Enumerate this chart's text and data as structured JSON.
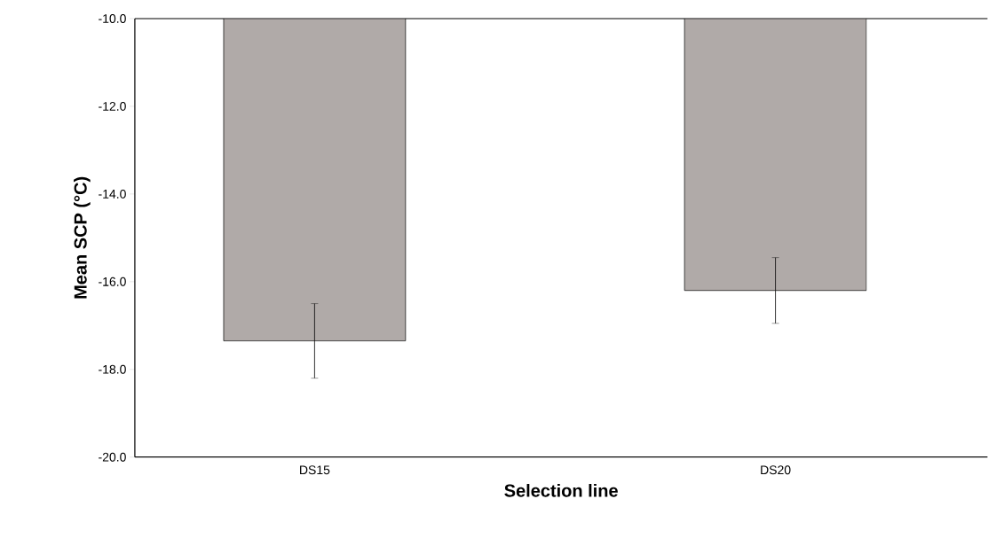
{
  "chart_data": {
    "type": "bar",
    "xlabel": "Selection line",
    "ylabel": "Mean SCP (°C)",
    "categories": [
      "DS15",
      "DS20"
    ],
    "values": [
      -17.35,
      -16.2
    ],
    "errors": [
      0.85,
      0.75
    ],
    "color": "#b0aaa8",
    "ylim": [
      -20,
      -10
    ],
    "yticks": [
      {
        "value": -20,
        "label": "-20.0"
      },
      {
        "value": -18,
        "label": "-18.0"
      },
      {
        "value": -16,
        "label": "-16.0"
      },
      {
        "value": -14,
        "label": "-14.0"
      },
      {
        "value": -12,
        "label": "-12.0"
      },
      {
        "value": -10,
        "label": "-10.0"
      }
    ]
  }
}
